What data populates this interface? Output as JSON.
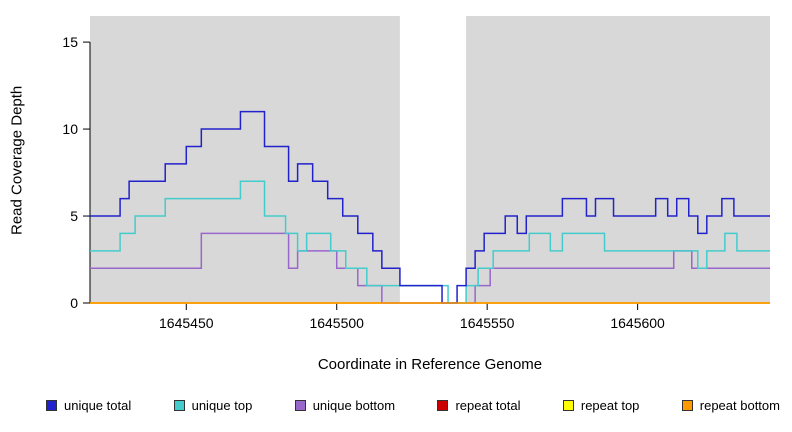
{
  "chart_data": {
    "type": "line",
    "variant": "step",
    "title": "",
    "xlabel": "Coordinate in Reference Genome",
    "ylabel": "Read Coverage Depth",
    "xlim": [
      1645418,
      1645644
    ],
    "ylim": [
      0,
      16.5
    ],
    "xticks": [
      1645450,
      1645500,
      1645550,
      1645600
    ],
    "yticks": [
      0,
      5,
      10,
      15
    ],
    "grid": false,
    "legend_position": "bottom",
    "plot_bg": "#d8d8d8",
    "page_bg": "#ffffff",
    "axis_color": "#000000",
    "gap_region": {
      "x0": 1645521,
      "x1": 1645543,
      "color": "#ffffff"
    },
    "draw_order": [
      3,
      4,
      2,
      1,
      0,
      5
    ],
    "series": [
      {
        "name": "unique total",
        "color": "#2222cc",
        "points": [
          [
            1645418,
            5
          ],
          [
            1645428,
            6
          ],
          [
            1645431,
            7
          ],
          [
            1645443,
            8
          ],
          [
            1645450,
            9
          ],
          [
            1645455,
            10
          ],
          [
            1645468,
            11
          ],
          [
            1645476,
            9
          ],
          [
            1645484,
            7
          ],
          [
            1645487,
            8
          ],
          [
            1645492,
            7
          ],
          [
            1645497,
            6
          ],
          [
            1645502,
            5
          ],
          [
            1645507,
            4
          ],
          [
            1645512,
            3
          ],
          [
            1645515,
            2
          ],
          [
            1645521,
            1
          ],
          [
            1645535,
            0
          ],
          [
            1645540,
            1
          ],
          [
            1645543,
            2
          ],
          [
            1645546,
            3
          ],
          [
            1645549,
            4
          ],
          [
            1645556,
            5
          ],
          [
            1645560,
            4
          ],
          [
            1645563,
            5
          ],
          [
            1645575,
            6
          ],
          [
            1645583,
            5
          ],
          [
            1645586,
            6
          ],
          [
            1645592,
            5
          ],
          [
            1645606,
            6
          ],
          [
            1645610,
            5
          ],
          [
            1645613,
            6
          ],
          [
            1645617,
            5
          ],
          [
            1645620,
            4
          ],
          [
            1645623,
            5
          ],
          [
            1645628,
            6
          ],
          [
            1645632,
            5
          ]
        ]
      },
      {
        "name": "unique top",
        "color": "#44cccc",
        "points": [
          [
            1645418,
            3
          ],
          [
            1645428,
            4
          ],
          [
            1645433,
            5
          ],
          [
            1645443,
            6
          ],
          [
            1645468,
            7
          ],
          [
            1645476,
            5
          ],
          [
            1645483,
            4
          ],
          [
            1645487,
            3
          ],
          [
            1645490,
            4
          ],
          [
            1645498,
            3
          ],
          [
            1645503,
            2
          ],
          [
            1645510,
            1
          ],
          [
            1645537,
            0
          ],
          [
            1645543,
            1
          ],
          [
            1645547,
            2
          ],
          [
            1645552,
            3
          ],
          [
            1645564,
            4
          ],
          [
            1645571,
            3
          ],
          [
            1645575,
            4
          ],
          [
            1645589,
            3
          ],
          [
            1645620,
            2
          ],
          [
            1645623,
            3
          ],
          [
            1645629,
            4
          ],
          [
            1645633,
            3
          ]
        ]
      },
      {
        "name": "unique bottom",
        "color": "#9966cc",
        "points": [
          [
            1645418,
            2
          ],
          [
            1645455,
            4
          ],
          [
            1645484,
            2
          ],
          [
            1645487,
            3
          ],
          [
            1645500,
            2
          ],
          [
            1645507,
            1
          ],
          [
            1645515,
            0
          ],
          [
            1645546,
            1
          ],
          [
            1645551,
            2
          ],
          [
            1645612,
            3
          ],
          [
            1645618,
            2
          ]
        ]
      },
      {
        "name": "repeat total",
        "color": "#cc0000",
        "points": [
          [
            1645418,
            0
          ]
        ]
      },
      {
        "name": "repeat top",
        "color": "#ffff00",
        "points": [
          [
            1645418,
            0
          ]
        ]
      },
      {
        "name": "repeat bottom",
        "color": "#ff9900",
        "points": [
          [
            1645418,
            0
          ]
        ]
      }
    ]
  },
  "legend": {
    "items": [
      {
        "label": "unique total",
        "color": "#2222cc"
      },
      {
        "label": "unique top",
        "color": "#44cccc"
      },
      {
        "label": "unique bottom",
        "color": "#9966cc"
      },
      {
        "label": "repeat total",
        "color": "#cc0000"
      },
      {
        "label": "repeat top",
        "color": "#ffff00"
      },
      {
        "label": "repeat bottom",
        "color": "#ff9900"
      }
    ]
  }
}
